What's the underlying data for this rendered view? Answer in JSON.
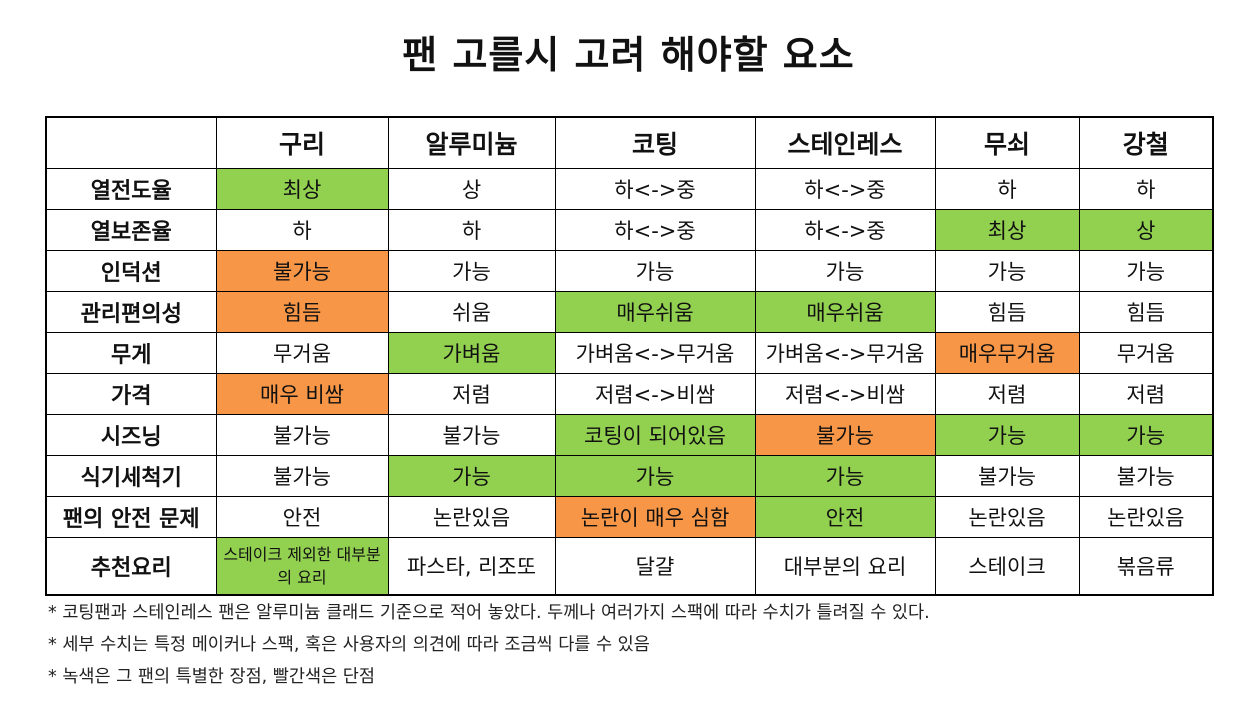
{
  "title": "팬 고를시 고려 해야할 요소",
  "table": {
    "corner": "",
    "columns": [
      "구리",
      "알루미늄",
      "코팅",
      "스테인레스",
      "무쇠",
      "강철"
    ],
    "rows": [
      {
        "label": "열전도율",
        "cells": [
          {
            "text": "최상",
            "tone": "good"
          },
          {
            "text": "상",
            "tone": ""
          },
          {
            "text": "하<->중",
            "tone": ""
          },
          {
            "text": "하<->중",
            "tone": ""
          },
          {
            "text": "하",
            "tone": ""
          },
          {
            "text": "하",
            "tone": ""
          }
        ]
      },
      {
        "label": "열보존율",
        "cells": [
          {
            "text": "하",
            "tone": ""
          },
          {
            "text": "하",
            "tone": ""
          },
          {
            "text": "하<->중",
            "tone": ""
          },
          {
            "text": "하<->중",
            "tone": ""
          },
          {
            "text": "최상",
            "tone": "good"
          },
          {
            "text": "상",
            "tone": "good"
          }
        ]
      },
      {
        "label": "인덕션",
        "cells": [
          {
            "text": "불가능",
            "tone": "bad"
          },
          {
            "text": "가능",
            "tone": ""
          },
          {
            "text": "가능",
            "tone": ""
          },
          {
            "text": "가능",
            "tone": ""
          },
          {
            "text": "가능",
            "tone": ""
          },
          {
            "text": "가능",
            "tone": ""
          }
        ]
      },
      {
        "label": "관리편의성",
        "cells": [
          {
            "text": "힘듬",
            "tone": "bad"
          },
          {
            "text": "쉬움",
            "tone": ""
          },
          {
            "text": "매우쉬움",
            "tone": "good"
          },
          {
            "text": "매우쉬움",
            "tone": "good"
          },
          {
            "text": "힘듬",
            "tone": ""
          },
          {
            "text": "힘듬",
            "tone": ""
          }
        ]
      },
      {
        "label": "무게",
        "cells": [
          {
            "text": "무거움",
            "tone": ""
          },
          {
            "text": "가벼움",
            "tone": "good"
          },
          {
            "text": "가벼움<->무거움",
            "tone": ""
          },
          {
            "text": "가벼움<->무거움",
            "tone": ""
          },
          {
            "text": "매우무거움",
            "tone": "bad"
          },
          {
            "text": "무거움",
            "tone": ""
          }
        ]
      },
      {
        "label": "가격",
        "cells": [
          {
            "text": "매우 비쌈",
            "tone": "bad"
          },
          {
            "text": "저렴",
            "tone": ""
          },
          {
            "text": "저렴<->비쌈",
            "tone": ""
          },
          {
            "text": "저렴<->비쌈",
            "tone": ""
          },
          {
            "text": "저렴",
            "tone": ""
          },
          {
            "text": "저렴",
            "tone": ""
          }
        ]
      },
      {
        "label": "시즈닝",
        "cells": [
          {
            "text": "불가능",
            "tone": ""
          },
          {
            "text": "불가능",
            "tone": ""
          },
          {
            "text": "코팅이 되어있음",
            "tone": "good"
          },
          {
            "text": "불가능",
            "tone": "bad"
          },
          {
            "text": "가능",
            "tone": "good"
          },
          {
            "text": "가능",
            "tone": "good"
          }
        ]
      },
      {
        "label": "식기세척기",
        "cells": [
          {
            "text": "불가능",
            "tone": ""
          },
          {
            "text": "가능",
            "tone": "good"
          },
          {
            "text": "가능",
            "tone": "good"
          },
          {
            "text": "가능",
            "tone": "good"
          },
          {
            "text": "불가능",
            "tone": ""
          },
          {
            "text": "불가능",
            "tone": ""
          }
        ]
      },
      {
        "label": "팬의 안전 문제",
        "cells": [
          {
            "text": "안전",
            "tone": ""
          },
          {
            "text": "논란있음",
            "tone": ""
          },
          {
            "text": "논란이 매우 심함",
            "tone": "bad"
          },
          {
            "text": "안전",
            "tone": "good"
          },
          {
            "text": "논란있음",
            "tone": ""
          },
          {
            "text": "논란있음",
            "tone": ""
          }
        ]
      },
      {
        "label": "추천요리",
        "tall": true,
        "cells": [
          {
            "text": "스테이크 제외한 대부분의 요리",
            "tone": "good",
            "small": true
          },
          {
            "text": "파스타, 리조또",
            "tone": ""
          },
          {
            "text": "달걀",
            "tone": ""
          },
          {
            "text": "대부분의 요리",
            "tone": ""
          },
          {
            "text": "스테이크",
            "tone": ""
          },
          {
            "text": "볶음류",
            "tone": ""
          }
        ]
      }
    ]
  },
  "notes": [
    "* 코팅팬과 스테인레스 팬은 알루미늄 클래드 기준으로 적어 놓았다. 두께나 여러가지 스팩에 따라 수치가 틀려질 수 있다.",
    "* 세부 수치는 특정 메이커나 스팩, 혹은 사용자의 의견에 따라 조금씩 다를 수 있음",
    "* 녹색은 그 팬의 특별한 장점, 빨간색은 단점"
  ],
  "colors": {
    "good": "#92d050",
    "bad": "#f79646",
    "border": "#000000"
  }
}
